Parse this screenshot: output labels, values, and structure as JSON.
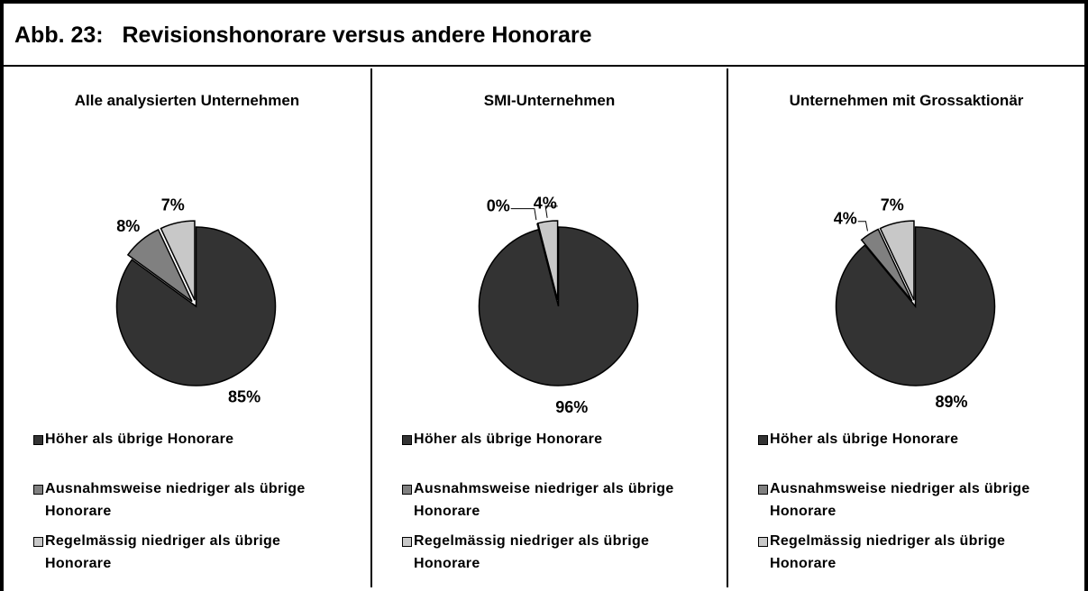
{
  "title": "Abb. 23:   Revisionshonorare versus andere Honorare",
  "chart_data": [
    {
      "type": "pie",
      "title": "Alle analysierten Unternehmen",
      "categories": [
        "Höher als übrige Honorare",
        "Ausnahmsweise niedriger als übrige Honorare",
        "Regelmässig niedriger als übrige Honorare"
      ],
      "values": [
        85,
        8,
        7
      ],
      "value_labels": [
        "85%",
        "8%",
        "7%"
      ],
      "colors": [
        "#333333",
        "#808080",
        "#c8c8c8"
      ]
    },
    {
      "type": "pie",
      "title": "SMI-Unternehmen",
      "categories": [
        "Höher als übrige Honorare",
        "Ausnahmsweise niedriger als übrige Honorare",
        "Regelmässig niedriger als übrige Honorare"
      ],
      "values": [
        96,
        0,
        4
      ],
      "value_labels": [
        "96%",
        "0%",
        "4%"
      ],
      "colors": [
        "#333333",
        "#808080",
        "#c8c8c8"
      ]
    },
    {
      "type": "pie",
      "title": "Unternehmen mit Grossaktionär",
      "categories": [
        "Höher als übrige Honorare",
        "Ausnahmsweise niedriger als übrige Honorare",
        "Regelmässig niedriger als übrige Honorare"
      ],
      "values": [
        89,
        4,
        7
      ],
      "value_labels": [
        "89%",
        "4%",
        "7%"
      ],
      "colors": [
        "#333333",
        "#808080",
        "#c8c8c8"
      ]
    }
  ]
}
